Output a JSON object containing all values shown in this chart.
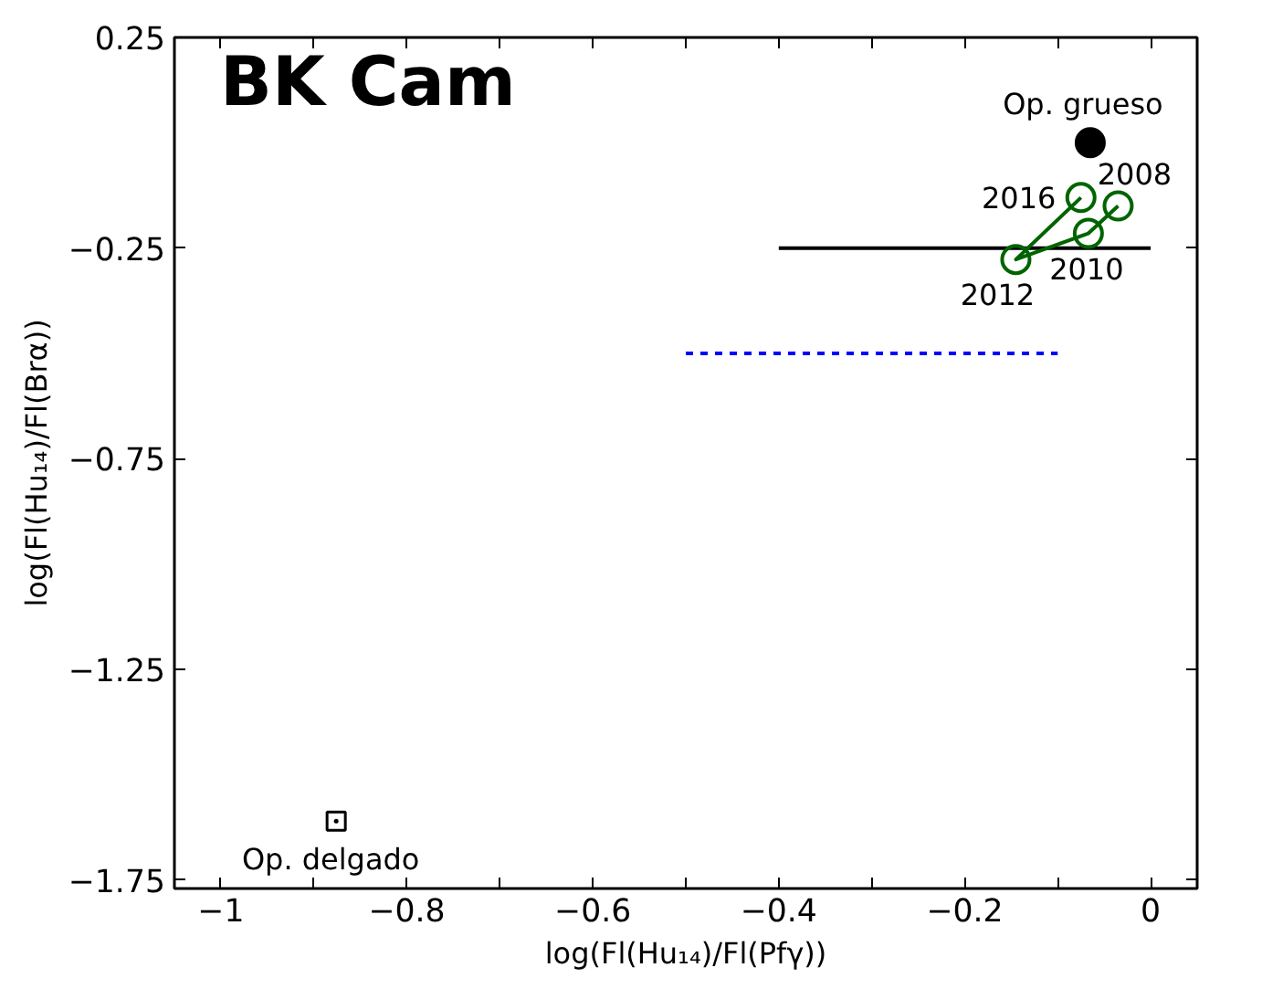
{
  "chart_data": {
    "type": "scatter",
    "title": "BK Cam",
    "xlabel": "log(Fl(Hu₁₄)/Fl(Pfγ))",
    "ylabel": "log(Fl(Hu₁₄)/Fl(Brα))",
    "xlim": [
      -1.05,
      0.05
    ],
    "ylim": [
      -1.77,
      0.25
    ],
    "xticks": [
      -1,
      {
        "value": -0.9,
        "label": null
      },
      -0.8,
      {
        "value": -0.7,
        "label": null
      },
      -0.6,
      {
        "value": -0.5,
        "label": null
      },
      -0.4,
      {
        "value": -0.3,
        "label": null
      },
      -0.2,
      {
        "value": -0.1,
        "label": null
      },
      0
    ],
    "yticks": [
      0.25,
      -0.25,
      -0.75,
      -1.25,
      -1.75
    ],
    "grid": false,
    "series": [
      {
        "type": "line",
        "color": "#000000",
        "x": [
          -0.4,
          0.0
        ],
        "values": [
          -0.25,
          -0.25
        ],
        "marker": "none",
        "line_style": "solid"
      },
      {
        "type": "line",
        "color": "#0000ff",
        "x": [
          -0.5,
          -0.1
        ],
        "values": [
          -0.5,
          -0.5
        ],
        "marker": "none",
        "line_style": "dashed"
      },
      {
        "type": "line",
        "color": "#006400",
        "x": [
          -0.035,
          -0.067,
          -0.145,
          -0.075
        ],
        "values": [
          -0.15,
          -0.215,
          -0.277,
          -0.13
        ],
        "marker": "circle",
        "line_style": "solid"
      },
      {
        "color": "#000000",
        "x": [
          -0.065
        ],
        "values": [
          0.0
        ],
        "marker": "circle"
      },
      {
        "color": "#000000",
        "x": [
          -0.876
        ],
        "values": [
          -1.61
        ],
        "marker": "square"
      }
    ],
    "annotations": [
      {
        "text": "Op. grueso",
        "x": -0.065,
        "y": 0.0
      },
      {
        "text": "2016",
        "x": -0.075,
        "y": -0.13
      },
      {
        "text": "2008",
        "x": -0.035,
        "y": -0.15
      },
      {
        "text": "2010",
        "x": -0.067,
        "y": -0.215
      },
      {
        "text": "2012",
        "x": -0.145,
        "y": -0.277
      },
      {
        "text": "Op. delgado",
        "x": -0.876,
        "y": -1.61
      }
    ]
  }
}
